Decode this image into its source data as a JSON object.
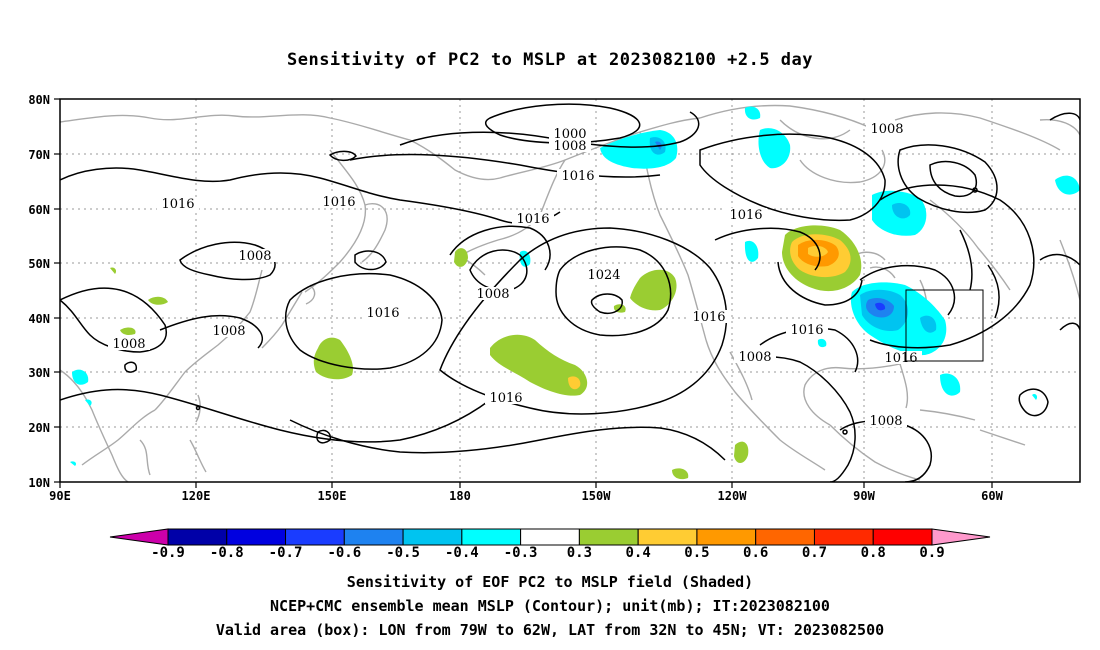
{
  "title": "Sensitivity of PC2 to MSLP at 2023082100 +2.5 day",
  "lat_labels": [
    "80N",
    "70N",
    "60N",
    "50N",
    "40N",
    "30N",
    "20N",
    "10N"
  ],
  "lon_labels": [
    "90E",
    "120E",
    "150E",
    "180",
    "150W",
    "120W",
    "90W",
    "60W"
  ],
  "contour_labels": [
    "1000",
    "1008",
    "1016",
    "1016",
    "1016",
    "1008",
    "1008",
    "1016",
    "1008",
    "1008",
    "1008",
    "1016",
    "1016",
    "1024",
    "1016",
    "1016",
    "1008",
    "1016",
    "1008",
    "1016"
  ],
  "colorbar": {
    "labels": [
      "-0.9",
      "-0.8",
      "-0.7",
      "-0.6",
      "-0.5",
      "-0.4",
      "-0.3",
      "0.3",
      "0.4",
      "0.5",
      "0.6",
      "0.7",
      "0.8",
      "0.9"
    ],
    "colors": [
      "#0000a8",
      "#0000e0",
      "#1a3cff",
      "#1e82f0",
      "#00c4f0",
      "#00ffff",
      "#ffffff",
      "#9acd32",
      "#ffcc33",
      "#ff9900",
      "#ff6600",
      "#ff2a00",
      "#ff0000"
    ],
    "low_end_color": "#cc00aa",
    "high_end_color": "#ff99cc"
  },
  "captions": {
    "line1": "Sensitivity of EOF PC2 to MSLP field (Shaded)",
    "line2": "NCEP+CMC ensemble mean MSLP (Contour); unit(mb); IT:2023082100",
    "line3": "Valid area (box): LON from 79W to 62W, LAT from 32N to 45N; VT: 2023082500"
  },
  "valid_box": {
    "lon_min": -79,
    "lon_max": -62,
    "lat_min": 32,
    "lat_max": 45
  }
}
